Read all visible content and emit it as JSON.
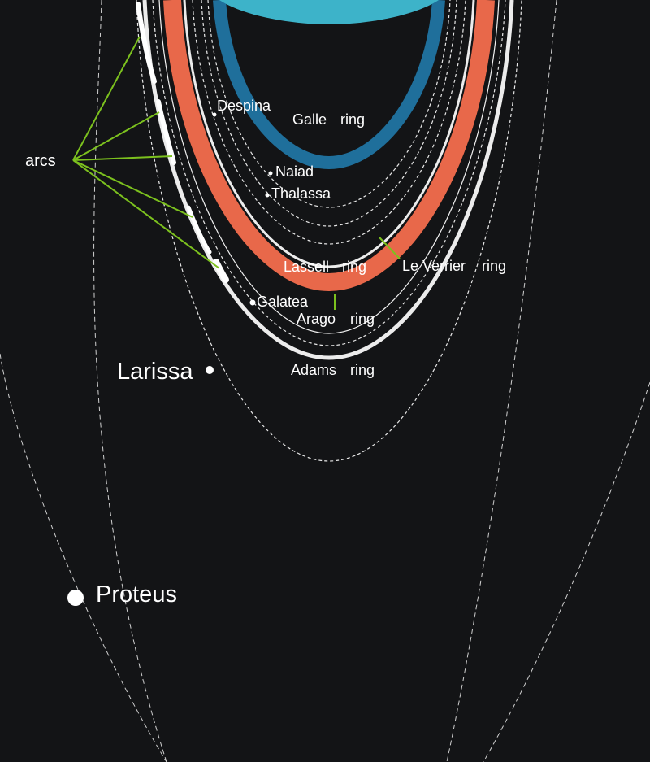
{
  "labels": {
    "arcs": "arcs",
    "despina": "Despina",
    "galle_ring_name": "Galle",
    "galle_ring_word": "ring",
    "naiad": "Naiad",
    "thalassa": "Thalassa",
    "lassell_ring_name": "Lassell",
    "lassell_ring_word": "ring",
    "le_verrier_ring_name": "Le Verrier",
    "le_verrier_ring_word": "ring",
    "galatea": "Galatea",
    "arago_ring_name": "Arago",
    "arago_ring_word": "ring",
    "larissa": "Larissa",
    "adams_ring_name": "Adams",
    "adams_ring_word": "ring",
    "proteus": "Proteus"
  },
  "colors": {
    "background": "#131416",
    "planet": "#3db3c9",
    "galle_ring": "#1f6f9b",
    "lassell_ring": "#e8684a",
    "le_verrier_ring": "#ececec",
    "adams_ring": "#ececec",
    "leader_lines": "#7cc11e",
    "text": "#ffffff"
  }
}
